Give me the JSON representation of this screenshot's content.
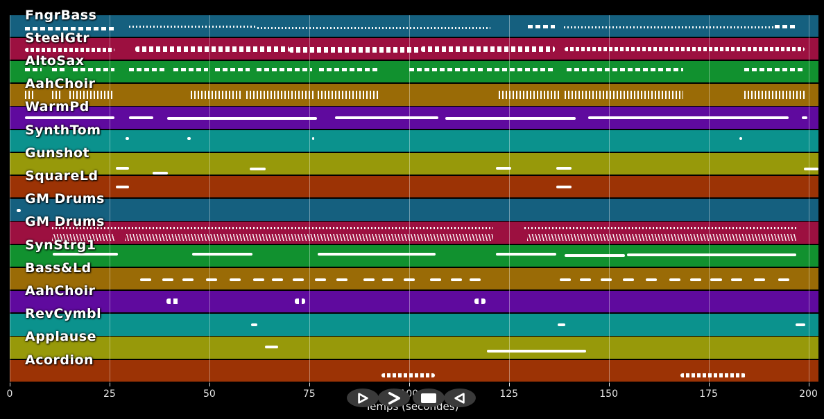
{
  "window": {
    "background": "#000000"
  },
  "axis": {
    "label": "Temps (secondes)",
    "ticks": [
      "0",
      "25",
      "50",
      "75",
      "100",
      "125",
      "150",
      "175",
      "200"
    ],
    "min": 0,
    "max": 200,
    "tick_color": "#e6e6e6",
    "grid_color": "rgba(255,255,255,0.38)"
  },
  "transport": {
    "background": "#3a3a3a",
    "icon_color": "#ffffff",
    "buttons": [
      {
        "id": "play",
        "icon": "play-icon"
      },
      {
        "id": "fast-forward",
        "icon": "fast-forward-icon"
      },
      {
        "id": "stop",
        "icon": "stop-icon"
      },
      {
        "id": "rewind",
        "icon": "rewind-icon"
      }
    ]
  },
  "palette": {
    "steelblue": "#15607F",
    "crimson": "#9C1040",
    "green": "#11912F",
    "goldenrod": "#9A6B06",
    "purple": "#5F0A9E",
    "teal": "#0B928D",
    "olive": "#97990A",
    "rust": "#9C3305"
  },
  "tracks": [
    {
      "label": "FngrBass",
      "color": "#15607F",
      "notes": [
        [
          3.8,
          26.3,
          0.62,
          "dash"
        ],
        [
          29.9,
          62.0,
          0.55,
          "dots"
        ],
        [
          62.0,
          120.4,
          0.6,
          "dots"
        ],
        [
          129.8,
          136.6,
          0.52,
          "dash"
        ],
        [
          138.8,
          191.4,
          0.58,
          "dots"
        ],
        [
          191.6,
          197.3,
          0.52,
          "dash"
        ]
      ]
    },
    {
      "label": "SteelGtr",
      "color": "#9C1040",
      "notes": [
        [
          3.8,
          26.2,
          0.55,
          "wavy"
        ],
        [
          31.4,
          70.0,
          0.5,
          "blobs"
        ],
        [
          70.0,
          103.0,
          0.54,
          "blobs"
        ],
        [
          103.0,
          136.6,
          0.5,
          "blobs"
        ],
        [
          139.0,
          199.1,
          0.52,
          "wavy"
        ]
      ]
    },
    {
      "label": "AltoSax",
      "color": "#11912F",
      "notes": [
        [
          3.8,
          8.0,
          0.4,
          "dash"
        ],
        [
          10.6,
          14.1,
          0.4,
          "dash"
        ],
        [
          15.8,
          26.2,
          0.4,
          "dash"
        ],
        [
          29.9,
          39.3,
          0.4,
          "dash"
        ],
        [
          41.0,
          49.7,
          0.4,
          "dash"
        ],
        [
          51.4,
          60.1,
          0.4,
          "dash"
        ],
        [
          61.9,
          75.8,
          0.4,
          "dash"
        ],
        [
          77.5,
          92.3,
          0.4,
          "dash"
        ],
        [
          100.1,
          119.2,
          0.4,
          "dash"
        ],
        [
          119.5,
          136.6,
          0.4,
          "dash"
        ],
        [
          139.5,
          168.6,
          0.4,
          "dash"
        ],
        [
          184.0,
          198.8,
          0.4,
          "dash"
        ]
      ]
    },
    {
      "label": "AahChoir",
      "color": "#9A6B06",
      "notes": [
        [
          3.8,
          5.9,
          0.5,
          "ticks"
        ],
        [
          10.6,
          12.9,
          0.5,
          "ticks"
        ],
        [
          14.9,
          26.2,
          0.5,
          "ticks"
        ],
        [
          45.3,
          58.4,
          0.5,
          "ticks"
        ],
        [
          59.3,
          76.6,
          0.5,
          "ticks"
        ],
        [
          77.2,
          92.3,
          0.5,
          "ticks"
        ],
        [
          122.5,
          137.6,
          0.5,
          "ticks"
        ],
        [
          139.0,
          168.6,
          0.5,
          "ticks"
        ],
        [
          184.0,
          199.2,
          0.5,
          "ticks"
        ]
      ]
    },
    {
      "label": "WarmPd",
      "color": "#5F0A9E",
      "notes": [
        [
          3.8,
          26.2,
          0.48,
          "line"
        ],
        [
          29.9,
          36.0,
          0.48,
          "line"
        ],
        [
          39.4,
          77.0,
          0.52,
          "line"
        ],
        [
          81.5,
          107.4,
          0.48,
          "line"
        ],
        [
          109.1,
          141.8,
          0.52,
          "line"
        ],
        [
          144.8,
          195.0,
          0.48,
          "line"
        ],
        [
          198.3,
          199.8,
          0.48,
          "line"
        ]
      ]
    },
    {
      "label": "SynthTom",
      "color": "#0B928D",
      "notes": [
        [
          29.0,
          29.9,
          0.4,
          "speck"
        ],
        [
          44.4,
          45.3,
          0.4,
          "speck"
        ],
        [
          75.7,
          76.3,
          0.4,
          "speck"
        ],
        [
          182.8,
          183.4,
          0.4,
          "speck"
        ]
      ]
    },
    {
      "label": "Gunshot",
      "color": "#97990A",
      "notes": [
        [
          26.6,
          29.9,
          0.72,
          "line"
        ],
        [
          35.8,
          39.6,
          0.93,
          "line"
        ],
        [
          60.1,
          64.1,
          0.75,
          "line"
        ],
        [
          121.8,
          125.6,
          0.7,
          "line"
        ],
        [
          136.8,
          140.6,
          0.72,
          "line"
        ],
        [
          198.8,
          203.5,
          0.75,
          "line"
        ]
      ]
    },
    {
      "label": "SquareLd",
      "color": "#9C3305",
      "notes": [
        [
          26.6,
          29.9,
          0.5,
          "line"
        ],
        [
          136.8,
          140.6,
          0.52,
          "line"
        ]
      ]
    },
    {
      "label": "GM Drums",
      "color": "#15607F",
      "notes": [
        [
          1.7,
          2.7,
          0.55,
          "speck"
        ]
      ]
    },
    {
      "label": "GM Drums",
      "color": "#9C1040",
      "notes": [
        [
          10.6,
          121.1,
          0.3,
          "dots"
        ],
        [
          128.8,
          197.4,
          0.3,
          "dots"
        ],
        [
          10.6,
          26.2,
          0.72,
          "slashes"
        ],
        [
          28.8,
          121.1,
          0.72,
          "slashes"
        ],
        [
          129.6,
          196.9,
          0.72,
          "slashes"
        ]
      ]
    },
    {
      "label": "SynStrg1",
      "color": "#11912F",
      "notes": [
        [
          10.8,
          27.1,
          0.44,
          "line"
        ],
        [
          45.7,
          60.8,
          0.44,
          "line"
        ],
        [
          77.2,
          106.7,
          0.44,
          "line"
        ],
        [
          121.8,
          136.9,
          0.44,
          "line"
        ],
        [
          139.0,
          154.1,
          0.48,
          "line"
        ],
        [
          154.6,
          196.9,
          0.46,
          "line"
        ]
      ]
    },
    {
      "label": "Bass&Ld",
      "color": "#9A6B06",
      "notes": [
        [
          32.6,
          35.4,
          0.55,
          "line"
        ],
        [
          38.2,
          41.0,
          0.55,
          "line"
        ],
        [
          43.3,
          46.1,
          0.55,
          "line"
        ],
        [
          49.2,
          52.0,
          0.55,
          "line"
        ],
        [
          55.1,
          57.9,
          0.55,
          "line"
        ],
        [
          61.0,
          63.8,
          0.55,
          "line"
        ],
        [
          65.7,
          68.5,
          0.55,
          "line"
        ],
        [
          70.9,
          73.7,
          0.55,
          "line"
        ],
        [
          76.4,
          79.2,
          0.55,
          "line"
        ],
        [
          81.8,
          84.6,
          0.55,
          "line"
        ],
        [
          88.6,
          91.4,
          0.55,
          "line"
        ],
        [
          93.2,
          96.0,
          0.55,
          "line"
        ],
        [
          98.7,
          101.5,
          0.55,
          "line"
        ],
        [
          105.3,
          108.1,
          0.55,
          "line"
        ],
        [
          110.5,
          113.3,
          0.55,
          "line"
        ],
        [
          115.2,
          118.0,
          0.55,
          "line"
        ],
        [
          137.8,
          140.6,
          0.55,
          "line"
        ],
        [
          142.7,
          145.5,
          0.55,
          "line"
        ],
        [
          148.0,
          150.8,
          0.55,
          "line"
        ],
        [
          153.6,
          156.4,
          0.55,
          "line"
        ],
        [
          159.2,
          162.0,
          0.55,
          "line"
        ],
        [
          165.2,
          168.0,
          0.55,
          "line"
        ],
        [
          170.3,
          173.1,
          0.55,
          "line"
        ],
        [
          175.5,
          178.3,
          0.55,
          "line"
        ],
        [
          180.7,
          183.5,
          0.55,
          "line"
        ],
        [
          186.4,
          189.2,
          0.55,
          "line"
        ],
        [
          192.5,
          195.3,
          0.55,
          "line"
        ]
      ]
    },
    {
      "label": "AahChoir",
      "color": "#5F0A9E",
      "notes": [
        [
          39.3,
          42.7,
          0.48,
          "blobs"
        ],
        [
          71.4,
          74.0,
          0.48,
          "blobs"
        ],
        [
          116.4,
          119.2,
          0.48,
          "blobs"
        ]
      ]
    },
    {
      "label": "RevCymbl",
      "color": "#0B928D",
      "notes": [
        [
          60.5,
          62.0,
          0.52,
          "line"
        ],
        [
          137.2,
          139.1,
          0.52,
          "line"
        ],
        [
          196.8,
          199.2,
          0.52,
          "line"
        ]
      ]
    },
    {
      "label": "Applause",
      "color": "#97990A",
      "notes": [
        [
          63.9,
          67.2,
          0.46,
          "line"
        ],
        [
          119.5,
          144.4,
          0.66,
          "line"
        ]
      ]
    },
    {
      "label": "Acordion",
      "color": "#9C3305",
      "notes": [
        [
          93.1,
          106.5,
          0.7,
          "wavy"
        ],
        [
          168.0,
          184.3,
          0.7,
          "wavy"
        ]
      ]
    }
  ]
}
